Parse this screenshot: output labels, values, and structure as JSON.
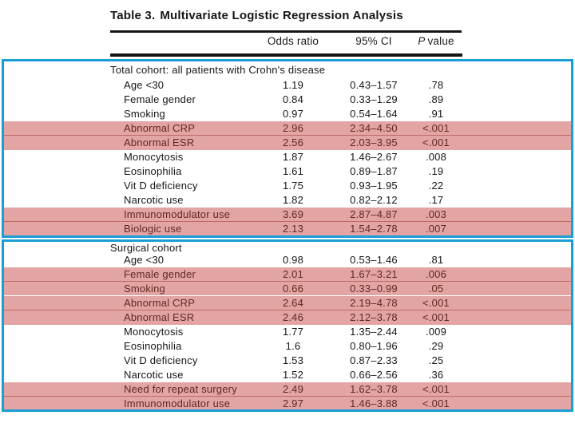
{
  "title": {
    "label": "Table 3.",
    "text": "Multivariate Logistic Regression Analysis"
  },
  "header": {
    "odds_ratio": "Odds ratio",
    "ci": "95% CI",
    "p_prefix": "P",
    "p_suffix": "value"
  },
  "colors": {
    "accent_border": "#1b9ed8",
    "highlight_bg": "#e2a5a3",
    "highlight_line": "#c06a66",
    "highlight_text": "#632722",
    "text": "#161616"
  },
  "sections": [
    {
      "name": "total-cohort",
      "header": "Total cohort: all patients with Crohn's disease",
      "rows": [
        {
          "label": "Age <30",
          "odds_ratio": "1.19",
          "ci": "0.43–1.57",
          "p": ".78",
          "highlighted": false
        },
        {
          "label": "Female gender",
          "odds_ratio": "0.84",
          "ci": "0.33–1.29",
          "p": ".89",
          "highlighted": false
        },
        {
          "label": "Smoking",
          "odds_ratio": "0.97",
          "ci": "0.54–1.64",
          "p": ".91",
          "highlighted": false
        },
        {
          "label": "Abnormal CRP",
          "odds_ratio": "2.96",
          "ci": "2.34–4.50",
          "p": "<.001",
          "highlighted": true,
          "divider": "line"
        },
        {
          "label": "Abnormal ESR",
          "odds_ratio": "2.56",
          "ci": "2.03–3.95",
          "p": "<.001",
          "highlighted": true
        },
        {
          "label": "Monocytosis",
          "odds_ratio": "1.87",
          "ci": "1.46–2.67",
          "p": ".008",
          "highlighted": false
        },
        {
          "label": "Eosinophilia",
          "odds_ratio": "1.61",
          "ci": "0.89–1.87",
          "p": ".19",
          "highlighted": false
        },
        {
          "label": "Vit D deficiency",
          "odds_ratio": "1.75",
          "ci": "0.93–1.95",
          "p": ".22",
          "highlighted": false
        },
        {
          "label": "Narcotic use",
          "odds_ratio": "1.82",
          "ci": "0.82–2.12",
          "p": ".17",
          "highlighted": false
        },
        {
          "label": "Immunomodulator use",
          "odds_ratio": "3.69",
          "ci": "2.87–4.87",
          "p": ".003",
          "highlighted": true,
          "divider": "line"
        },
        {
          "label": "Biologic use",
          "odds_ratio": "2.13",
          "ci": "1.54–2.78",
          "p": ".007",
          "highlighted": true
        }
      ]
    },
    {
      "name": "surgical-cohort",
      "header": "Surgical cohort",
      "rows": [
        {
          "label": "Age <30",
          "odds_ratio": "0.98",
          "ci": "0.53–1.46",
          "p": ".81",
          "highlighted": false
        },
        {
          "label": "Female gender",
          "odds_ratio": "2.01",
          "ci": "1.67–3.21",
          "p": ".006",
          "highlighted": true,
          "divider": "line"
        },
        {
          "label": "Smoking",
          "odds_ratio": "0.66",
          "ci": "0.33–0.99",
          "p": ".05",
          "highlighted": true,
          "divider": "gap"
        },
        {
          "label": "Abnormal CRP",
          "odds_ratio": "2.64",
          "ci": "2.19–4.78",
          "p": "<.001",
          "highlighted": true,
          "divider": "line"
        },
        {
          "label": "Abnormal ESR",
          "odds_ratio": "2.46",
          "ci": "2.12–3.78",
          "p": "<.001",
          "highlighted": true
        },
        {
          "label": "Monocytosis",
          "odds_ratio": "1.77",
          "ci": "1.35–2.44",
          "p": ".009",
          "highlighted": false
        },
        {
          "label": "Eosinophilia",
          "odds_ratio": "1.6",
          "ci": "0.80–1.96",
          "p": ".29",
          "highlighted": false
        },
        {
          "label": "Vit D deficiency",
          "odds_ratio": "1.53",
          "ci": "0.87–2.33",
          "p": ".25",
          "highlighted": false
        },
        {
          "label": "Narcotic use",
          "odds_ratio": "1.52",
          "ci": "0.66–2.56",
          "p": ".36",
          "highlighted": false
        },
        {
          "label": "Need for repeat surgery",
          "odds_ratio": "2.49",
          "ci": "1.62–3.78",
          "p": "<.001",
          "highlighted": true,
          "divider": "line"
        },
        {
          "label": "Immunomodulator use",
          "odds_ratio": "2.97",
          "ci": "1.46–3.88",
          "p": "<.001",
          "highlighted": true
        }
      ]
    }
  ]
}
